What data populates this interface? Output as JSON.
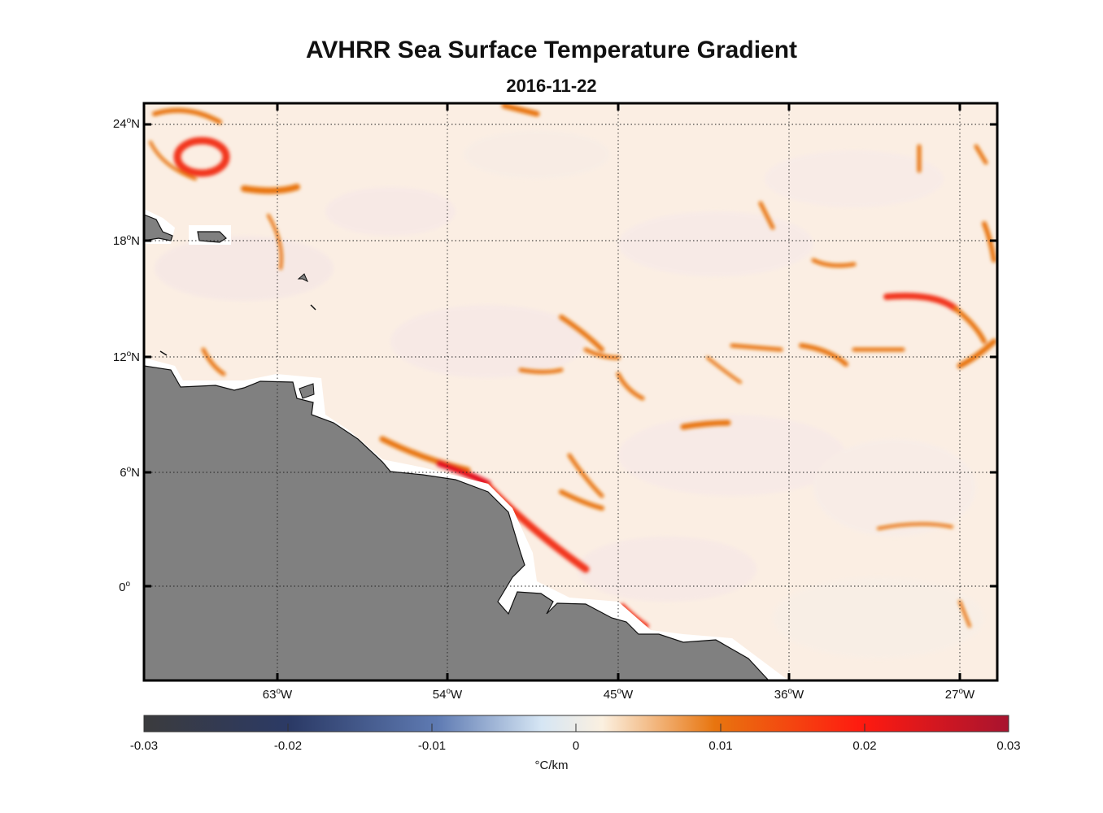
{
  "title": "AVHRR Sea Surface Temperature Gradient",
  "subtitle": "2016-11-22",
  "map": {
    "lat_ticks": [
      {
        "deg": "24",
        "sup": "o",
        "hem": "N"
      },
      {
        "deg": "18",
        "sup": "o",
        "hem": "N"
      },
      {
        "deg": "12",
        "sup": "o",
        "hem": "N"
      },
      {
        "deg": "6",
        "sup": "o",
        "hem": "N"
      },
      {
        "deg": "0",
        "sup": "o",
        "hem": ""
      }
    ],
    "lon_ticks": [
      {
        "deg": "63",
        "sup": "o",
        "hem": "W"
      },
      {
        "deg": "54",
        "sup": "o",
        "hem": "W"
      },
      {
        "deg": "45",
        "sup": "o",
        "hem": "W"
      },
      {
        "deg": "36",
        "sup": "o",
        "hem": "W"
      },
      {
        "deg": "27",
        "sup": "o",
        "hem": "W"
      }
    ],
    "grid": "dotted",
    "land_color": "#808080",
    "ocean_background": "#fbeee3",
    "front_colors": [
      "#e8750f",
      "#f2361a",
      "#e3101d"
    ]
  },
  "colorbar": {
    "ticks": [
      "-0.03",
      "-0.02",
      "-0.01",
      "0",
      "0.01",
      "0.02",
      "0.03"
    ],
    "units": "°C/km",
    "colors": [
      "#3b3b3d",
      "#2b3a66",
      "#5f7bb3",
      "#d6e6f4",
      "#fbf0e0",
      "#e8750f",
      "#ff1a10",
      "#a8142f"
    ]
  }
}
